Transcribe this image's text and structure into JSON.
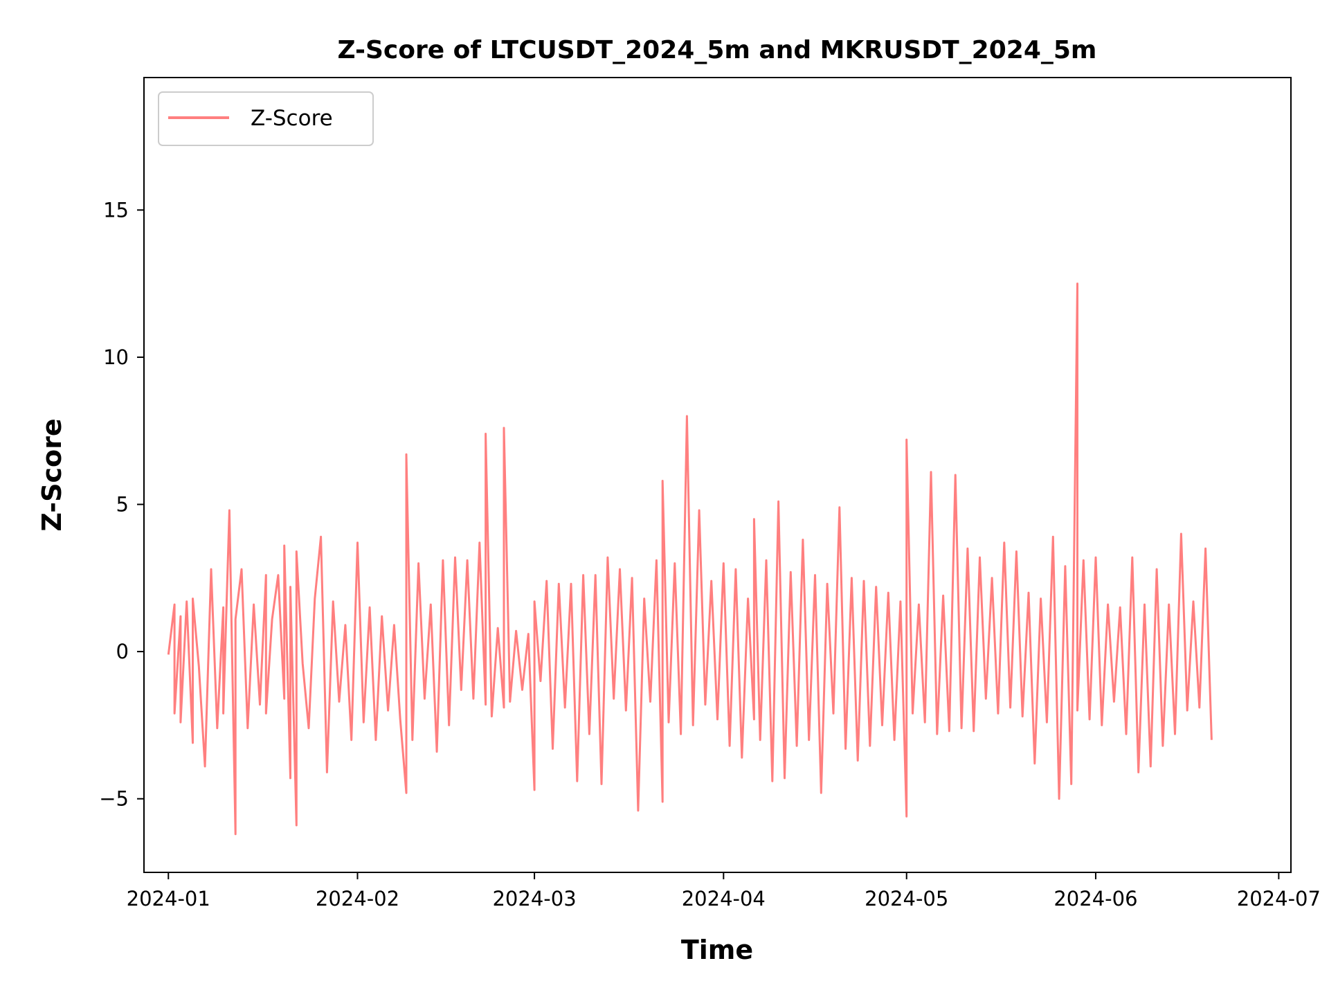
{
  "chart_data": {
    "type": "line",
    "title": "Z-Score of LTCUSDT_2024_5m and MKRUSDT_2024_5m",
    "xlabel": "Time",
    "ylabel": "Z-Score",
    "x_axis": "date",
    "xlim": [
      "2023-12-28",
      "2024-07-03"
    ],
    "ylim": [
      -7.5,
      19.5
    ],
    "x_ticks": [
      "2024-01",
      "2024-02",
      "2024-03",
      "2024-04",
      "2024-05",
      "2024-06",
      "2024-07"
    ],
    "y_ticks": [
      -5,
      0,
      5,
      10,
      15
    ],
    "y_tick_labels": [
      "−5",
      "0",
      "5",
      "10",
      "15"
    ],
    "grid": false,
    "legend": {
      "position": "top-left",
      "entries": [
        "Z-Score"
      ]
    },
    "series": [
      {
        "name": "Z-Score",
        "color": "#ff7f7f",
        "points": [
          [
            "2024-01-01",
            -0.1
          ],
          [
            "2024-01-02",
            1.6
          ],
          [
            "2024-01-02",
            -2.1
          ],
          [
            "2024-01-03",
            1.2
          ],
          [
            "2024-01-03",
            -2.4
          ],
          [
            "2024-01-04",
            1.7
          ],
          [
            "2024-01-05",
            -3.1
          ],
          [
            "2024-01-05",
            1.8
          ],
          [
            "2024-01-06",
            -0.5
          ],
          [
            "2024-01-07",
            -3.9
          ],
          [
            "2024-01-08",
            2.8
          ],
          [
            "2024-01-09",
            -2.6
          ],
          [
            "2024-01-10",
            1.5
          ],
          [
            "2024-01-10",
            -2.1
          ],
          [
            "2024-01-11",
            4.8
          ],
          [
            "2024-01-12",
            -6.2
          ],
          [
            "2024-01-12",
            1.1
          ],
          [
            "2024-01-13",
            2.8
          ],
          [
            "2024-01-14",
            -2.6
          ],
          [
            "2024-01-15",
            1.6
          ],
          [
            "2024-01-16",
            -1.8
          ],
          [
            "2024-01-17",
            2.6
          ],
          [
            "2024-01-17",
            -2.1
          ],
          [
            "2024-01-18",
            1.1
          ],
          [
            "2024-01-19",
            2.6
          ],
          [
            "2024-01-20",
            -1.6
          ],
          [
            "2024-01-20",
            3.6
          ],
          [
            "2024-01-21",
            -4.3
          ],
          [
            "2024-01-21",
            2.2
          ],
          [
            "2024-01-22",
            -5.9
          ],
          [
            "2024-01-22",
            3.4
          ],
          [
            "2024-01-23",
            -0.4
          ],
          [
            "2024-01-24",
            -2.6
          ],
          [
            "2024-01-25",
            1.8
          ],
          [
            "2024-01-26",
            3.9
          ],
          [
            "2024-01-27",
            -4.1
          ],
          [
            "2024-01-28",
            1.7
          ],
          [
            "2024-01-29",
            -1.7
          ],
          [
            "2024-01-30",
            0.9
          ],
          [
            "2024-01-31",
            -3.0
          ],
          [
            "2024-02-01",
            3.7
          ],
          [
            "2024-02-02",
            -2.4
          ],
          [
            "2024-02-03",
            1.5
          ],
          [
            "2024-02-04",
            -3.0
          ],
          [
            "2024-02-05",
            1.2
          ],
          [
            "2024-02-06",
            -2.0
          ],
          [
            "2024-02-07",
            0.9
          ],
          [
            "2024-02-08",
            -2.3
          ],
          [
            "2024-02-09",
            -4.8
          ],
          [
            "2024-02-09",
            6.7
          ],
          [
            "2024-02-10",
            -3.0
          ],
          [
            "2024-02-11",
            3.0
          ],
          [
            "2024-02-12",
            -1.6
          ],
          [
            "2024-02-13",
            1.6
          ],
          [
            "2024-02-14",
            -3.4
          ],
          [
            "2024-02-15",
            3.1
          ],
          [
            "2024-02-16",
            -2.5
          ],
          [
            "2024-02-17",
            3.2
          ],
          [
            "2024-02-18",
            -1.3
          ],
          [
            "2024-02-19",
            3.1
          ],
          [
            "2024-02-20",
            -1.6
          ],
          [
            "2024-02-21",
            3.7
          ],
          [
            "2024-02-22",
            -1.8
          ],
          [
            "2024-02-22",
            7.4
          ],
          [
            "2024-02-23",
            -2.2
          ],
          [
            "2024-02-24",
            0.8
          ],
          [
            "2024-02-25",
            -1.9
          ],
          [
            "2024-02-25",
            7.6
          ],
          [
            "2024-02-26",
            -1.7
          ],
          [
            "2024-02-27",
            0.7
          ],
          [
            "2024-02-28",
            -1.3
          ],
          [
            "2024-02-29",
            0.6
          ],
          [
            "2024-03-01",
            -4.7
          ],
          [
            "2024-03-01",
            1.7
          ],
          [
            "2024-03-02",
            -1.0
          ],
          [
            "2024-03-03",
            2.4
          ],
          [
            "2024-03-04",
            -3.3
          ],
          [
            "2024-03-05",
            2.3
          ],
          [
            "2024-03-06",
            -1.9
          ],
          [
            "2024-03-07",
            2.3
          ],
          [
            "2024-03-08",
            -4.4
          ],
          [
            "2024-03-09",
            2.6
          ],
          [
            "2024-03-10",
            -2.8
          ],
          [
            "2024-03-11",
            2.6
          ],
          [
            "2024-03-12",
            -4.5
          ],
          [
            "2024-03-13",
            3.2
          ],
          [
            "2024-03-14",
            -1.6
          ],
          [
            "2024-03-15",
            2.8
          ],
          [
            "2024-03-16",
            -2.0
          ],
          [
            "2024-03-17",
            2.5
          ],
          [
            "2024-03-18",
            -5.4
          ],
          [
            "2024-03-19",
            1.8
          ],
          [
            "2024-03-20",
            -1.7
          ],
          [
            "2024-03-21",
            3.1
          ],
          [
            "2024-03-22",
            -5.1
          ],
          [
            "2024-03-22",
            5.8
          ],
          [
            "2024-03-23",
            -2.4
          ],
          [
            "2024-03-24",
            3.0
          ],
          [
            "2024-03-25",
            -2.8
          ],
          [
            "2024-03-26",
            8.0
          ],
          [
            "2024-03-27",
            -2.5
          ],
          [
            "2024-03-28",
            4.8
          ],
          [
            "2024-03-29",
            -1.8
          ],
          [
            "2024-03-30",
            2.4
          ],
          [
            "2024-03-31",
            -2.3
          ],
          [
            "2024-04-01",
            3.0
          ],
          [
            "2024-04-02",
            -3.2
          ],
          [
            "2024-04-03",
            2.8
          ],
          [
            "2024-04-04",
            -3.6
          ],
          [
            "2024-04-05",
            1.8
          ],
          [
            "2024-04-06",
            -2.3
          ],
          [
            "2024-04-06",
            4.5
          ],
          [
            "2024-04-07",
            -3.0
          ],
          [
            "2024-04-08",
            3.1
          ],
          [
            "2024-04-09",
            -4.4
          ],
          [
            "2024-04-10",
            5.1
          ],
          [
            "2024-04-11",
            -4.3
          ],
          [
            "2024-04-12",
            2.7
          ],
          [
            "2024-04-13",
            -3.2
          ],
          [
            "2024-04-14",
            3.8
          ],
          [
            "2024-04-15",
            -3.0
          ],
          [
            "2024-04-16",
            2.6
          ],
          [
            "2024-04-17",
            -4.8
          ],
          [
            "2024-04-18",
            2.3
          ],
          [
            "2024-04-19",
            -2.1
          ],
          [
            "2024-04-20",
            4.9
          ],
          [
            "2024-04-21",
            -3.3
          ],
          [
            "2024-04-22",
            2.5
          ],
          [
            "2024-04-23",
            -3.7
          ],
          [
            "2024-04-24",
            2.4
          ],
          [
            "2024-04-25",
            -3.2
          ],
          [
            "2024-04-26",
            2.2
          ],
          [
            "2024-04-27",
            -2.5
          ],
          [
            "2024-04-28",
            2.0
          ],
          [
            "2024-04-29",
            -3.0
          ],
          [
            "2024-04-30",
            1.7
          ],
          [
            "2024-05-01",
            -5.6
          ],
          [
            "2024-05-01",
            7.2
          ],
          [
            "2024-05-02",
            -2.1
          ],
          [
            "2024-05-03",
            1.6
          ],
          [
            "2024-05-04",
            -2.4
          ],
          [
            "2024-05-05",
            6.1
          ],
          [
            "2024-05-06",
            -2.8
          ],
          [
            "2024-05-07",
            1.9
          ],
          [
            "2024-05-08",
            -2.7
          ],
          [
            "2024-05-09",
            6.0
          ],
          [
            "2024-05-10",
            -2.6
          ],
          [
            "2024-05-11",
            3.5
          ],
          [
            "2024-05-12",
            -2.7
          ],
          [
            "2024-05-13",
            3.2
          ],
          [
            "2024-05-14",
            -1.6
          ],
          [
            "2024-05-15",
            2.5
          ],
          [
            "2024-05-16",
            -2.1
          ],
          [
            "2024-05-17",
            3.7
          ],
          [
            "2024-05-18",
            -1.9
          ],
          [
            "2024-05-19",
            3.4
          ],
          [
            "2024-05-20",
            -2.2
          ],
          [
            "2024-05-21",
            2.0
          ],
          [
            "2024-05-22",
            -3.8
          ],
          [
            "2024-05-23",
            1.8
          ],
          [
            "2024-05-24",
            -2.4
          ],
          [
            "2024-05-25",
            3.9
          ],
          [
            "2024-05-26",
            -5.0
          ],
          [
            "2024-05-27",
            2.9
          ],
          [
            "2024-05-28",
            -4.5
          ],
          [
            "2024-05-29",
            12.5
          ],
          [
            "2024-05-29",
            -2.0
          ],
          [
            "2024-05-30",
            3.1
          ],
          [
            "2024-05-31",
            -2.3
          ],
          [
            "2024-06-01",
            3.2
          ],
          [
            "2024-06-02",
            -2.5
          ],
          [
            "2024-06-03",
            1.6
          ],
          [
            "2024-06-04",
            -1.7
          ],
          [
            "2024-06-05",
            1.5
          ],
          [
            "2024-06-06",
            -2.8
          ],
          [
            "2024-06-07",
            3.2
          ],
          [
            "2024-06-08",
            -4.1
          ],
          [
            "2024-06-09",
            1.6
          ],
          [
            "2024-06-10",
            -3.9
          ],
          [
            "2024-06-11",
            2.8
          ],
          [
            "2024-06-12",
            -3.2
          ],
          [
            "2024-06-13",
            1.6
          ],
          [
            "2024-06-14",
            -2.8
          ],
          [
            "2024-06-15",
            4.0
          ],
          [
            "2024-06-16",
            -2.0
          ],
          [
            "2024-06-17",
            1.7
          ],
          [
            "2024-06-18",
            -1.9
          ],
          [
            "2024-06-19",
            3.5
          ],
          [
            "2024-06-20",
            -3.0
          ]
        ]
      }
    ]
  }
}
